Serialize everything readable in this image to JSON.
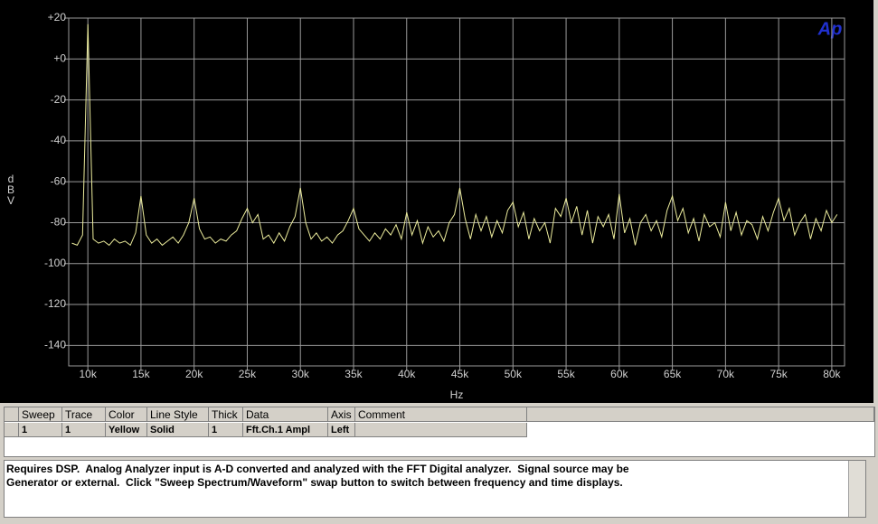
{
  "chart_data": {
    "type": "line",
    "logo": "Ap",
    "y_label": "dBV",
    "x_label": "Hz",
    "xlim": [
      8200,
      81200
    ],
    "ylim": [
      -150,
      20
    ],
    "grid": true,
    "xticks": [
      {
        "value": 10000,
        "label": "10k"
      },
      {
        "value": 15000,
        "label": "15k"
      },
      {
        "value": 20000,
        "label": "20k"
      },
      {
        "value": 25000,
        "label": "25k"
      },
      {
        "value": 30000,
        "label": "30k"
      },
      {
        "value": 35000,
        "label": "35k"
      },
      {
        "value": 40000,
        "label": "40k"
      },
      {
        "value": 45000,
        "label": "45k"
      },
      {
        "value": 50000,
        "label": "50k"
      },
      {
        "value": 55000,
        "label": "55k"
      },
      {
        "value": 60000,
        "label": "60k"
      },
      {
        "value": 65000,
        "label": "65k"
      },
      {
        "value": 70000,
        "label": "70k"
      },
      {
        "value": 75000,
        "label": "75k"
      },
      {
        "value": 80000,
        "label": "80k"
      }
    ],
    "yticks": [
      {
        "value": 20,
        "label": "+20"
      },
      {
        "value": 0,
        "label": "+0"
      },
      -20,
      -40,
      -60,
      -80,
      -100,
      -120,
      -140
    ],
    "x": [
      8500,
      9000,
      9500,
      10000,
      10500,
      11000,
      11500,
      12000,
      12500,
      13000,
      13500,
      14000,
      14500,
      15000,
      15500,
      16000,
      16500,
      17000,
      17500,
      18000,
      18500,
      19000,
      19500,
      20000,
      20500,
      21000,
      21500,
      22000,
      22500,
      23000,
      23500,
      24000,
      24500,
      25000,
      25500,
      26000,
      26500,
      27000,
      27500,
      28000,
      28500,
      29000,
      29500,
      30000,
      30500,
      31000,
      31500,
      32000,
      32500,
      33000,
      33500,
      34000,
      34500,
      35000,
      35500,
      36000,
      36500,
      37000,
      37500,
      38000,
      38500,
      39000,
      39500,
      40000,
      40500,
      41000,
      41500,
      42000,
      42500,
      43000,
      43500,
      44000,
      44500,
      45000,
      45500,
      46000,
      46500,
      47000,
      47500,
      48000,
      48500,
      49000,
      49500,
      50000,
      50500,
      51000,
      51500,
      52000,
      52500,
      53000,
      53500,
      54000,
      54500,
      55000,
      55500,
      56000,
      56500,
      57000,
      57500,
      58000,
      58500,
      59000,
      59500,
      60000,
      60500,
      61000,
      61500,
      62000,
      62500,
      63000,
      63500,
      64000,
      64500,
      65000,
      65500,
      66000,
      66500,
      67000,
      67500,
      68000,
      68500,
      69000,
      69500,
      70000,
      70500,
      71000,
      71500,
      72000,
      72500,
      73000,
      73500,
      74000,
      74500,
      75000,
      75500,
      76000,
      76500,
      77000,
      77500,
      78000,
      78500,
      79000,
      79500,
      80000,
      80500
    ],
    "series": [
      {
        "color": "#ecec9c",
        "values": [
          -90,
          -91,
          -86,
          17,
          -88,
          -90,
          -89,
          -91,
          -88,
          -90,
          -89,
          -91,
          -85,
          -67,
          -86,
          -90,
          -88,
          -91,
          -89,
          -87,
          -90,
          -86,
          -80,
          -68,
          -83,
          -88,
          -87,
          -90,
          -88,
          -89,
          -86,
          -84,
          -78,
          -73,
          -80,
          -76,
          -88,
          -86,
          -90,
          -85,
          -89,
          -82,
          -77,
          -63,
          -80,
          -88,
          -85,
          -89,
          -87,
          -90,
          -86,
          -84,
          -79,
          -73,
          -83,
          -86,
          -89,
          -85,
          -88,
          -83,
          -86,
          -81,
          -88,
          -75,
          -86,
          -79,
          -90,
          -82,
          -87,
          -84,
          -89,
          -80,
          -76,
          -63,
          -78,
          -88,
          -76,
          -84,
          -77,
          -87,
          -79,
          -85,
          -74,
          -70,
          -82,
          -75,
          -88,
          -78,
          -84,
          -80,
          -90,
          -73,
          -77,
          -68,
          -80,
          -72,
          -86,
          -74,
          -90,
          -77,
          -82,
          -76,
          -88,
          -66,
          -85,
          -78,
          -91,
          -80,
          -76,
          -84,
          -79,
          -87,
          -74,
          -67,
          -79,
          -73,
          -85,
          -78,
          -89,
          -76,
          -82,
          -80,
          -87,
          -70,
          -84,
          -75,
          -86,
          -79,
          -81,
          -88,
          -77,
          -84,
          -75,
          -68,
          -79,
          -73,
          -86,
          -80,
          -76,
          -88,
          -78,
          -84,
          -74,
          -80,
          -76
        ]
      }
    ]
  },
  "trace_table": {
    "columns": [
      "Sweep",
      "Trace",
      "Color",
      "Line Style",
      "Thick",
      "Data",
      "Axis",
      "Comment"
    ],
    "rows": [
      [
        "1",
        "1",
        "Yellow",
        "Solid",
        "1",
        "Fft.Ch.1 Ampl",
        "Left",
        ""
      ]
    ]
  },
  "description": {
    "lines": [
      "Requires DSP.  Analog Analyzer input is A-D converted and analyzed with the FFT Digital analyzer.  Signal source may be",
      "Generator or external.  Click \"Sweep Spectrum/Waveform\" swap button to switch between frequency and time displays."
    ]
  }
}
